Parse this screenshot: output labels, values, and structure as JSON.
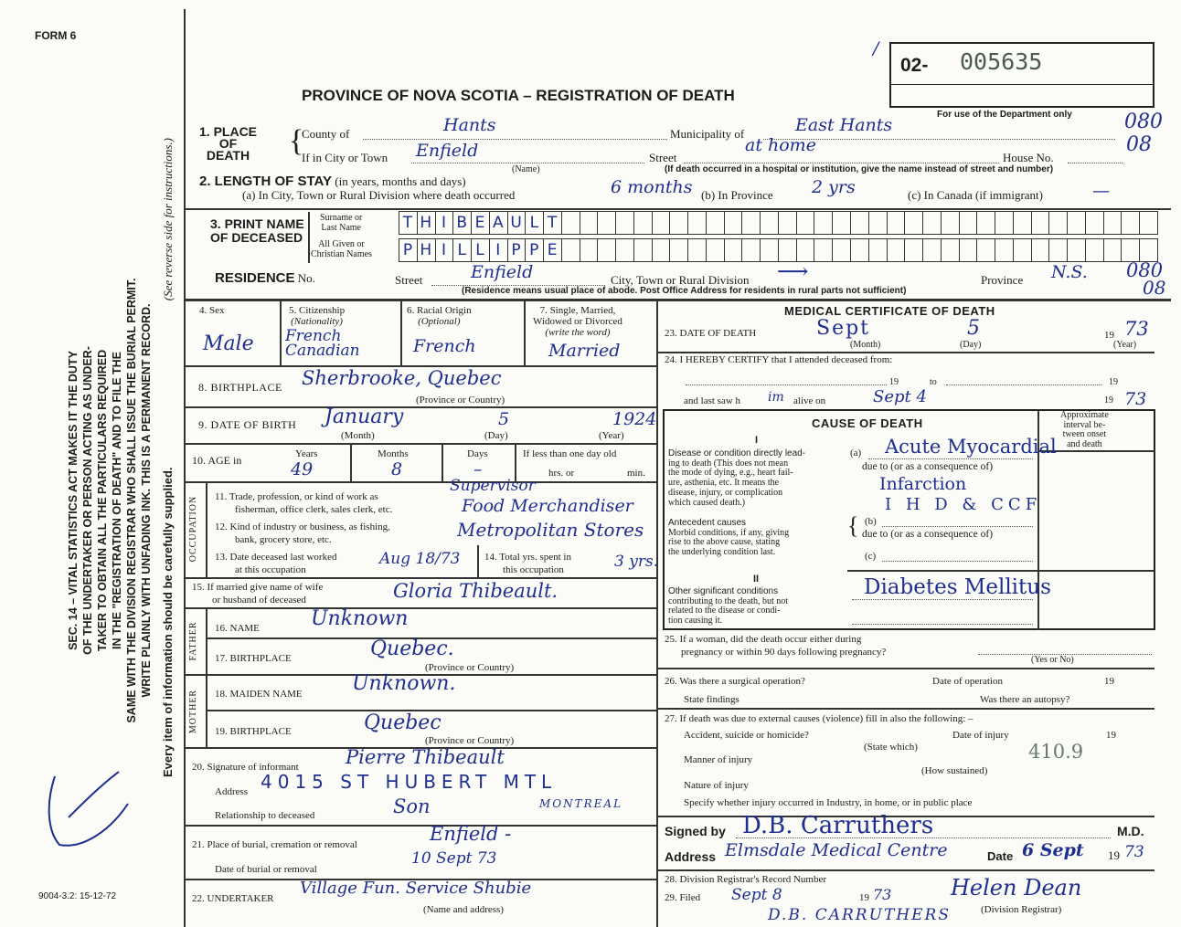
{
  "form_number": "FORM 6",
  "title": "PROVINCE OF NOVA SCOTIA – REGISTRATION OF DEATH",
  "registration": {
    "prefix": "02-",
    "number": "005635",
    "mark": "/"
  },
  "department_only": {
    "label": "For use of the Department only",
    "code1": "080",
    "code2": "08"
  },
  "margin": {
    "statute_lines": [
      "SEC. 14 – VITAL STATISTICS ACT MAKES IT THE DUTY",
      "OF THE UNDERTAKER OR PERSON ACTING AS UNDER-",
      "TAKER TO OBTAIN ALL THE PARTICULARS REQUIRED",
      "IN THE \"REGISTRATION OF DEATH\" AND TO FILE THE",
      "SAME WITH THE DIVISION REGISTRAR WHO SHALL ISSUE THE BURIAL PERMIT.",
      "WRITE PLAINLY WITH UNFADING INK. THIS IS A PERMANENT RECORD."
    ],
    "every_item": "Every item of information should be carefully supplied.",
    "see_reverse": "(See reverse side for instructions.)",
    "form_code": "9004-3.2: 15-12-72"
  },
  "place_of_death": {
    "label": [
      "1. PLACE",
      "OF",
      "DEATH"
    ],
    "county_label": "County of",
    "county": "Hants",
    "municipality_label": "Municipality of",
    "municipality": "East Hants",
    "city_label": "If in City or Town",
    "city": "Enfield",
    "name_note": "(Name)",
    "street_label": "Street",
    "street": "at home",
    "house_label": "House No.",
    "hospital_note": "(If death occurred in a hospital or institution, give the name instead of street and number)"
  },
  "length_of_stay": {
    "label": "2. LENGTH OF STAY",
    "label_note": "(in years, months and days)",
    "a_label": "(a) In City, Town or Rural Division where death occurred",
    "a": "6 months",
    "b_label": "(b) In Province",
    "b": "2 yrs",
    "c_label": "(c) In Canada (if immigrant)",
    "c": "—"
  },
  "name": {
    "label": [
      "3. PRINT NAME",
      "OF DECEASED"
    ],
    "surname_label": [
      "Surname or",
      "Last Name"
    ],
    "surname": "THIBEAULT",
    "given_label": [
      "All Given or",
      "Christian Names"
    ],
    "given": "PHILLIPPE"
  },
  "residence": {
    "label": "RESIDENCE",
    "no_label": "No.",
    "street_label": "Street",
    "street": "Enfield",
    "city_label": "City, Town or Rural Division",
    "city": "⟶",
    "province_label": "Province",
    "province": "N.S.",
    "code1": "080",
    "code2": "08",
    "note": "(Residence means usual place of abode. Post Office Address for residents in rural parts not sufficient)"
  },
  "personal": {
    "sex_label": "4. Sex",
    "sex": "Male",
    "citizenship_label": "5. Citizenship",
    "citizenship_note": "(Nationality)",
    "citizenship": [
      "French",
      "Canadian"
    ],
    "racial_label": "6. Racial Origin",
    "racial_note": "(Optional)",
    "racial": "French",
    "marital_label": [
      "7. Single, Married,",
      "Widowed or Divorced"
    ],
    "marital_note": "(write the word)",
    "marital": "Married",
    "birthplace_label": "8. BIRTHPLACE",
    "birthplace": "Sherbrooke, Quebec",
    "province_note": "(Province or Country)",
    "dob_label": "9. DATE OF BIRTH",
    "dob_month": "January",
    "dob_day": "5",
    "dob_year": "1924",
    "month_note": "(Month)",
    "day_note": "(Day)",
    "year_note": "(Year)",
    "age_label": "10. AGE in",
    "years_label": "Years",
    "years": "49",
    "months_label": "Months",
    "months": "8",
    "days_label": "Days",
    "days": "–",
    "less_label": "If less than one day old",
    "hrs_label": "hrs. or",
    "min_label": "min."
  },
  "occupation": {
    "side_label": "OCCUPATION",
    "trade_label": [
      "11. Trade, profession, or kind of work as",
      "fisherman, office clerk, sales clerk, etc."
    ],
    "trade": [
      "Supervisor",
      "Food Merchandiser"
    ],
    "industry_label": [
      "12. Kind of industry or business, as fishing,",
      "bank, grocery store, etc."
    ],
    "industry": "Metropolitan Stores",
    "last_worked_label": [
      "13. Date deceased last worked",
      "at this occupation"
    ],
    "last_worked": "Aug 18/73",
    "total_years_label": [
      "14. Total yrs. spent in",
      "this occupation"
    ],
    "total_years": "3 yrs."
  },
  "spouse": {
    "label": [
      "15. If married give name of wife",
      "or husband of deceased"
    ],
    "name": "Gloria Thibeault."
  },
  "father": {
    "side_label": "FATHER",
    "name_label": "16. NAME",
    "name": "Unknown",
    "birthplace_label": "17. BIRTHPLACE",
    "birthplace": "Quebec.",
    "note": "(Province or Country)"
  },
  "mother": {
    "side_label": "MOTHER",
    "name_label": "18. MAIDEN NAME",
    "name": "Unknown.",
    "birthplace_label": "19. BIRTHPLACE",
    "birthplace": "Quebec",
    "note": "(Province or Country)"
  },
  "informant": {
    "signature_label": "20. Signature of informant",
    "signature": "Pierre Thibeault",
    "address_label": "Address",
    "address": "4015 ST HUBERT MTL",
    "address2": "MONTREAL",
    "relationship_label": "Relationship to deceased",
    "relationship": "Son"
  },
  "burial": {
    "place_label": "21. Place of burial, cremation or removal",
    "place": "Enfield -",
    "date_label": "Date of burial or removal",
    "date": "10 Sept 73"
  },
  "undertaker": {
    "label": "22. UNDERTAKER",
    "value": "Village Fun. Service Shubie",
    "note": "(Name and address)"
  },
  "medical": {
    "heading": "MEDICAL CERTIFICATE OF DEATH",
    "date_label": "23. DATE OF DEATH",
    "month": "Sept",
    "day": "5",
    "year_prefix": "19",
    "year": "73",
    "month_note": "(Month)",
    "day_note": "(Day)",
    "year_note": "(Year)",
    "certify_label": "24. I HEREBY CERTIFY that I attended deceased from:",
    "from_19": "19",
    "to": "to",
    "to_19": "19",
    "last_saw_label": "and last saw h",
    "last_saw_pronoun": "im",
    "alive_on": "alive on",
    "last_saw": "Sept 4",
    "last_saw_19": "19",
    "last_saw_year": "73"
  },
  "cause": {
    "heading": "CAUSE OF DEATH",
    "interval_label": [
      "Approximate",
      "interval be-",
      "tween onset",
      "and death"
    ],
    "part1": "I",
    "direct_label": [
      "Disease or condition directly lead-",
      "ing to death (This does not mean",
      "the mode of dying, e.g., heart fail-",
      "ure, asthenia, etc. It means the",
      "disease, injury, or complication",
      "which caused death.)"
    ],
    "antecedent_label": [
      "Antecedent causes",
      "Morbid conditions, if any, giving",
      "rise to the above cause, stating",
      "the underlying condition last."
    ],
    "a_label": "(a)",
    "a": [
      "Acute Myocardial",
      "Infarction"
    ],
    "due_to": "due to (or as a consequence of)",
    "b_label": "(b)",
    "b": "I H D & CCF",
    "c_label": "(c)",
    "part2": "II",
    "other_label": [
      "Other significant conditions",
      "contributing to the death, but not",
      "related to the disease or condi-",
      "tion causing it."
    ],
    "other": "Diabetes Mellitus"
  },
  "q25": {
    "label": [
      "25. If a woman, did the death occur either during",
      "pregnancy or within 90 days following pregnancy?"
    ],
    "note": "(Yes or No)"
  },
  "q26": {
    "label": "26. Was there a surgical operation?",
    "date_label": "Date of operation",
    "year_prefix": "19",
    "findings_label": "State findings",
    "autopsy_label": "Was there an autopsy?"
  },
  "q27": {
    "label": "27. If death was due to external causes (violence) fill in also the following: –",
    "accident_label": "Accident, suicide or homicide?",
    "state_which": "(State which)",
    "date_label": "Date of injury",
    "year_prefix": "19",
    "manner_label": "Manner of injury",
    "how_sustained": "(How sustained)",
    "code": "410.9",
    "nature_label": "Nature of injury",
    "specify_label": "Specify whether injury occurred in Industry, in home, or in public place"
  },
  "signature": {
    "signed_label": "Signed by",
    "signed": "D.B. Carruthers",
    "md": "M.D.",
    "address_label": "Address",
    "address": "Elmsdale Medical Centre",
    "date_label": "Date",
    "date": "6 Sept",
    "year_prefix": "19",
    "year": "73"
  },
  "registrar": {
    "record_label": "28. Division Registrar's Record Number",
    "filed_label": "29. Filed",
    "filed": "Sept 8",
    "year_prefix": "19",
    "year": "73",
    "signature": "Helen Dean",
    "registrar_note": "(Division Registrar)",
    "printed_name": "D.B. CARRUTHERS"
  },
  "colors": {
    "ink": "#1f2f8f",
    "paper": "#fbfbf7",
    "print": "#1c1c1c"
  }
}
